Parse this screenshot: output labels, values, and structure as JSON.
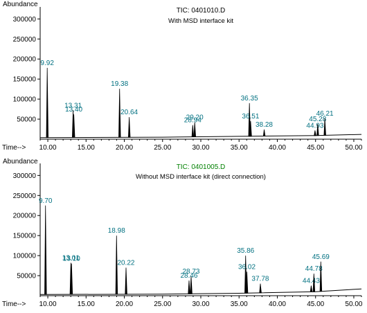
{
  "colors": {
    "axis": "#000000",
    "text": "#000000",
    "peak_label": "#007080",
    "tic_label_bottom": "#008000",
    "trace": "#000000"
  },
  "chart_data": [
    {
      "type": "line",
      "ylabel": "Abundance",
      "xlabel": "Time-->",
      "title": "TIC: 0401010.D",
      "subtitle": "With MSD interface kit",
      "xlim": [
        9.0,
        51.0
      ],
      "ylim": [
        0,
        330000
      ],
      "x_ticks": [
        10.0,
        15.0,
        20.0,
        25.0,
        30.0,
        35.0,
        40.0,
        45.0,
        50.0
      ],
      "x_tick_labels": [
        "10.00",
        "15.00",
        "20.00",
        "25.00",
        "30.00",
        "35.00",
        "40.00",
        "45.00",
        "50.00"
      ],
      "y_ticks": [
        50000,
        100000,
        150000,
        200000,
        250000,
        300000
      ],
      "y_tick_labels": [
        "50000",
        "100000",
        "150000",
        "200000",
        "250000",
        "300000"
      ],
      "baseline": [
        [
          9.0,
          4000
        ],
        [
          25.0,
          5000
        ],
        [
          35.0,
          7000
        ],
        [
          45.0,
          9000
        ],
        [
          51.0,
          12000
        ]
      ],
      "peaks": [
        {
          "x": 9.92,
          "y": 178000,
          "label": "9.92"
        },
        {
          "x": 13.31,
          "y": 72000,
          "label": "13.31"
        },
        {
          "x": 13.4,
          "y": 62000,
          "label": "13.40"
        },
        {
          "x": 19.38,
          "y": 126000,
          "label": "19.38"
        },
        {
          "x": 20.64,
          "y": 55000,
          "label": "20.64"
        },
        {
          "x": 28.94,
          "y": 35000,
          "label": "28.94"
        },
        {
          "x": 29.2,
          "y": 42000,
          "label": "29.20"
        },
        {
          "x": 36.35,
          "y": 90000,
          "label": "36.35"
        },
        {
          "x": 36.51,
          "y": 45000,
          "label": "36.51"
        },
        {
          "x": 38.28,
          "y": 24000,
          "label": "38.28"
        },
        {
          "x": 44.93,
          "y": 22000,
          "label": "44.93"
        },
        {
          "x": 45.28,
          "y": 38000,
          "label": "45.28"
        },
        {
          "x": 46.21,
          "y": 52000,
          "label": "46.21"
        }
      ]
    },
    {
      "type": "line",
      "ylabel": "Abundance",
      "xlabel": "Time-->",
      "title": "TIC: 0401005.D",
      "subtitle": "Without MSD interface kit (direct connection)",
      "xlim": [
        9.0,
        51.0
      ],
      "ylim": [
        0,
        330000
      ],
      "x_ticks": [
        10.0,
        15.0,
        20.0,
        25.0,
        30.0,
        35.0,
        40.0,
        45.0,
        50.0
      ],
      "x_tick_labels": [
        "10.00",
        "15.00",
        "20.00",
        "25.00",
        "30.00",
        "35.00",
        "40.00",
        "45.00",
        "50.00"
      ],
      "y_ticks": [
        50000,
        100000,
        150000,
        200000,
        250000,
        300000
      ],
      "y_tick_labels": [
        "50000",
        "100000",
        "150000",
        "200000",
        "250000",
        "300000"
      ],
      "baseline": [
        [
          9.0,
          3000
        ],
        [
          25.0,
          4000
        ],
        [
          35.0,
          6000
        ],
        [
          45.0,
          10000
        ],
        [
          51.0,
          17000
        ]
      ],
      "peaks": [
        {
          "x": 9.7,
          "y": 225000,
          "label": "9.70"
        },
        {
          "x": 13.01,
          "y": 82000,
          "label": "13.01"
        },
        {
          "x": 13.1,
          "y": 80000,
          "label": "13.10"
        },
        {
          "x": 18.98,
          "y": 150000,
          "label": "18.98"
        },
        {
          "x": 20.22,
          "y": 70000,
          "label": "20.22"
        },
        {
          "x": 28.46,
          "y": 38000,
          "label": "28.46"
        },
        {
          "x": 28.73,
          "y": 48000,
          "label": "28.73"
        },
        {
          "x": 35.86,
          "y": 100000,
          "label": "35.86"
        },
        {
          "x": 36.02,
          "y": 60000,
          "label": "36.02"
        },
        {
          "x": 37.78,
          "y": 30000,
          "label": "37.78"
        },
        {
          "x": 44.43,
          "y": 25000,
          "label": "44.43"
        },
        {
          "x": 44.78,
          "y": 55000,
          "label": "44.78"
        },
        {
          "x": 45.69,
          "y": 85000,
          "label": "45.69"
        }
      ]
    }
  ]
}
